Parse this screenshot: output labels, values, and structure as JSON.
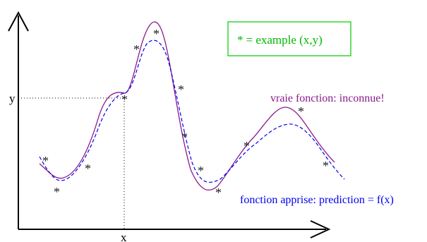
{
  "axes": {
    "x_label": "x",
    "y_label": "y"
  },
  "legend": {
    "marker": "*",
    "text": "= example (x,y)",
    "border_color": "#00cc00",
    "text_color": "#00b800"
  },
  "true_function": {
    "label": "vraie fonction: inconnue!",
    "color": "#8b1a8b"
  },
  "learned_function": {
    "label": "fonction apprise: prediction = f(x)",
    "color": "#0000ee"
  },
  "example_marker": {
    "glyph": "*",
    "color": "#222222",
    "count": 13
  }
}
